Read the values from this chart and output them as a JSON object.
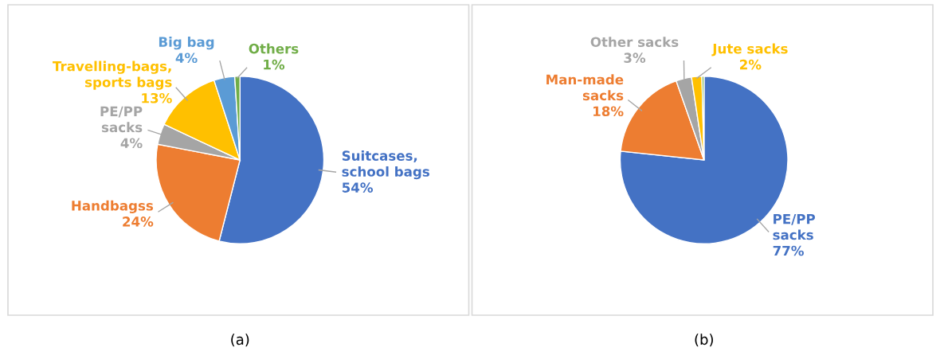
{
  "chart_data": [
    {
      "type": "pie",
      "title": "(a)",
      "categories": [
        "Suitcases,\nschool bags",
        "Handbagss",
        "PE/PP\nsacks",
        "Travelling-bags,\nsports bags",
        "Big bag",
        "Others"
      ],
      "values": [
        54,
        24,
        4,
        13,
        4,
        1
      ],
      "value_labels": [
        "54%",
        "24%",
        "4%",
        "13%",
        "4%",
        "1%"
      ],
      "colors": [
        "#4472c4",
        "#ed7d31",
        "#a5a5a5",
        "#ffc000",
        "#5b9bd5",
        "#70ad47"
      ],
      "legend": false
    },
    {
      "type": "pie",
      "title": "(b)",
      "categories": [
        "PE/PP\nsacks",
        "Man-made\nsacks",
        "Other sacks",
        "Jute sacks",
        null
      ],
      "values": [
        77,
        18,
        3,
        2,
        0.4
      ],
      "value_labels": [
        "77%",
        "18%",
        "3%",
        "2%",
        null
      ],
      "colors": [
        "#4472c4",
        "#ed7d31",
        "#a5a5a5",
        "#ffc000",
        "#70ad47"
      ],
      "legend": false
    }
  ]
}
